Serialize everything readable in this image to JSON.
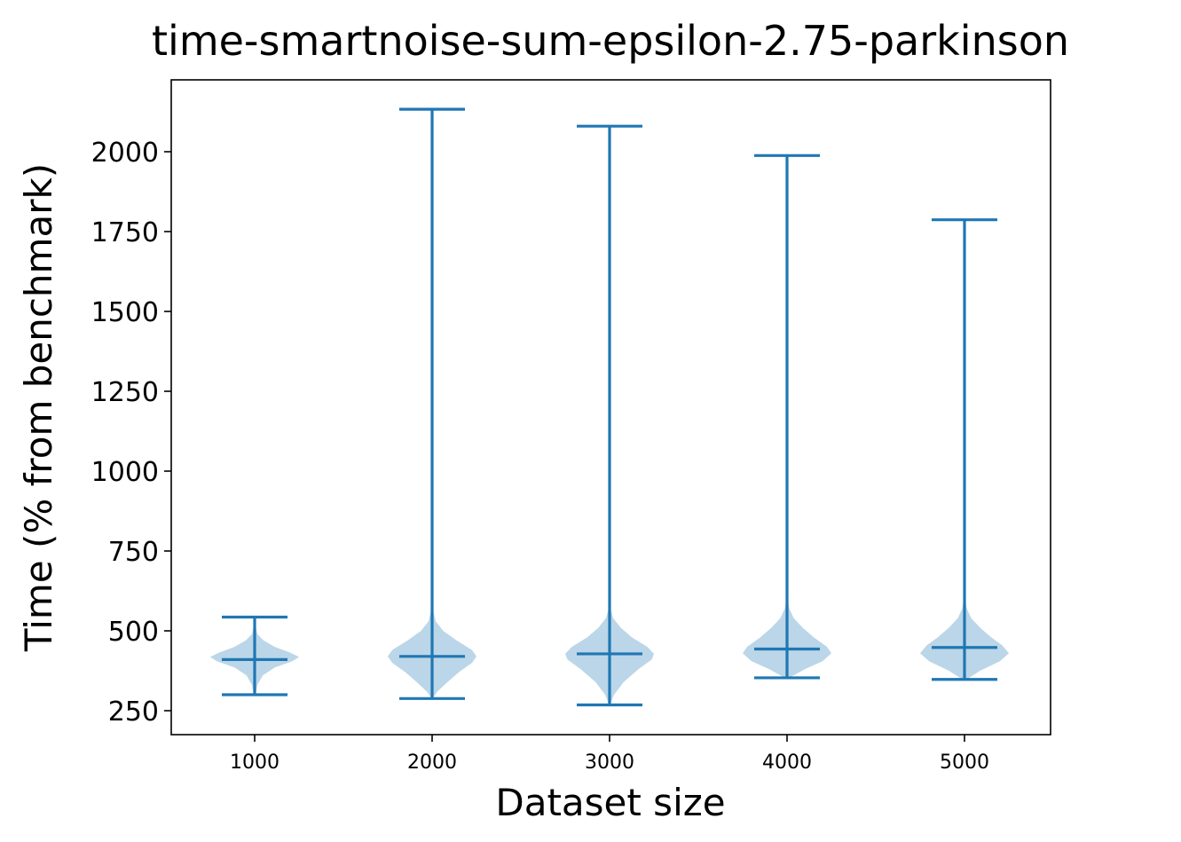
{
  "chart_data": {
    "type": "violin",
    "title": "time-smartnoise-sum-epsilon-2.75-parkinson",
    "xlabel": "Dataset size",
    "ylabel": "Time (% from benchmark)",
    "categories": [
      "1000",
      "2000",
      "3000",
      "4000",
      "5000"
    ],
    "yticks": [
      250,
      500,
      750,
      1000,
      1250,
      1500,
      1750,
      2000
    ],
    "ylim": [
      175,
      2225
    ],
    "grid": false,
    "colors": {
      "line": "#1f77b4",
      "body": "#1f77b4"
    },
    "series": [
      {
        "category": "1000",
        "min": 300,
        "median": 410,
        "max": 543,
        "density": [
          [
            300,
            0.02
          ],
          [
            330,
            0.06
          ],
          [
            360,
            0.18
          ],
          [
            385,
            0.45
          ],
          [
            405,
            0.85
          ],
          [
            418,
            1.0
          ],
          [
            432,
            0.8
          ],
          [
            450,
            0.45
          ],
          [
            470,
            0.2
          ],
          [
            490,
            0.06
          ],
          [
            510,
            0.03
          ],
          [
            543,
            0.01
          ]
        ]
      },
      {
        "category": "2000",
        "min": 288,
        "median": 420,
        "max": 2133,
        "density": [
          [
            288,
            0.01
          ],
          [
            310,
            0.12
          ],
          [
            340,
            0.35
          ],
          [
            370,
            0.6
          ],
          [
            400,
            0.9
          ],
          [
            420,
            1.0
          ],
          [
            440,
            0.9
          ],
          [
            470,
            0.55
          ],
          [
            500,
            0.25
          ],
          [
            530,
            0.08
          ],
          [
            560,
            0.03
          ],
          [
            600,
            0.01
          ],
          [
            2133,
            0.0
          ]
        ]
      },
      {
        "category": "3000",
        "min": 268,
        "median": 428,
        "max": 2080,
        "density": [
          [
            268,
            0.01
          ],
          [
            300,
            0.1
          ],
          [
            340,
            0.32
          ],
          [
            380,
            0.65
          ],
          [
            410,
            0.95
          ],
          [
            428,
            1.0
          ],
          [
            450,
            0.85
          ],
          [
            480,
            0.5
          ],
          [
            510,
            0.25
          ],
          [
            540,
            0.08
          ],
          [
            570,
            0.02
          ],
          [
            600,
            0.005
          ],
          [
            2080,
            0.0
          ]
        ]
      },
      {
        "category": "4000",
        "min": 353,
        "median": 443,
        "max": 1988,
        "density": [
          [
            353,
            0.05
          ],
          [
            380,
            0.4
          ],
          [
            405,
            0.8
          ],
          [
            430,
            1.0
          ],
          [
            450,
            0.9
          ],
          [
            480,
            0.6
          ],
          [
            510,
            0.35
          ],
          [
            540,
            0.15
          ],
          [
            570,
            0.05
          ],
          [
            600,
            0.015
          ],
          [
            650,
            0.005
          ],
          [
            1988,
            0.0
          ]
        ]
      },
      {
        "category": "5000",
        "min": 348,
        "median": 448,
        "max": 1787,
        "density": [
          [
            348,
            0.05
          ],
          [
            375,
            0.35
          ],
          [
            405,
            0.8
          ],
          [
            430,
            1.0
          ],
          [
            455,
            0.85
          ],
          [
            480,
            0.6
          ],
          [
            510,
            0.35
          ],
          [
            540,
            0.15
          ],
          [
            570,
            0.05
          ],
          [
            600,
            0.015
          ],
          [
            650,
            0.005
          ],
          [
            1787,
            0.0
          ]
        ]
      }
    ]
  }
}
